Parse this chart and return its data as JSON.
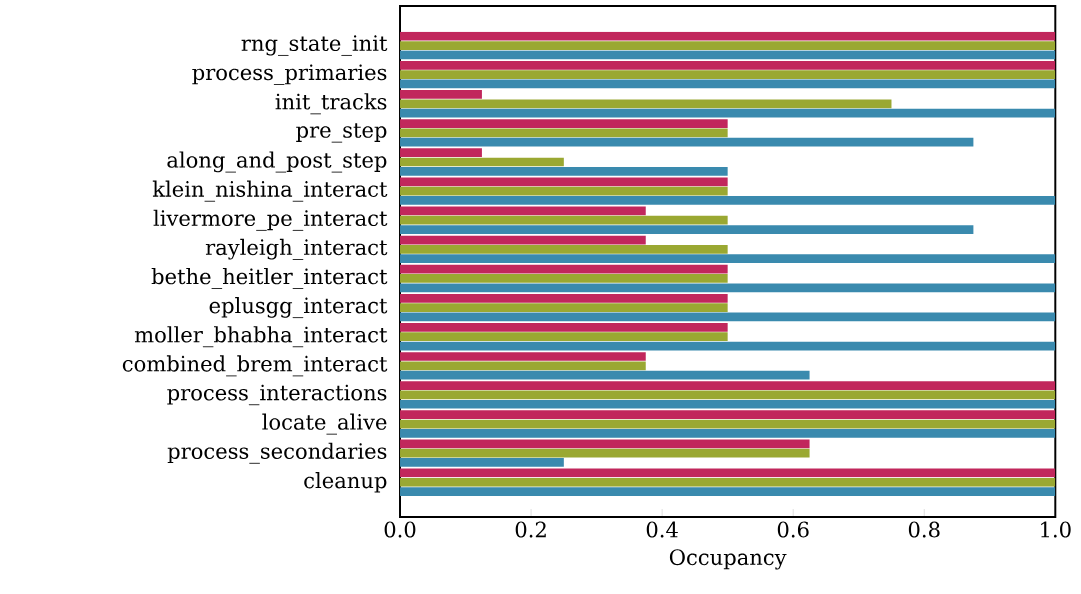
{
  "chart_data": {
    "type": "bar",
    "orientation": "horizontal",
    "xlabel": "Occupancy",
    "categories": [
      "rng_state_init",
      "process_primaries",
      "init_tracks",
      "pre_step",
      "along_and_post_step",
      "klein_nishina_interact",
      "livermore_pe_interact",
      "rayleigh_interact",
      "bethe_heitler_interact",
      "eplusgg_interact",
      "moller_bhabha_interact",
      "combined_brem_interact",
      "process_interactions",
      "locate_alive",
      "process_secondaries",
      "cleanup"
    ],
    "series": [
      {
        "color": "#c1275c",
        "values": [
          1,
          1,
          0.125,
          0.5,
          0.125,
          0.5,
          0.375,
          0.375,
          0.5,
          0.5,
          0.5,
          0.375,
          1,
          1,
          0.625,
          1
        ]
      },
      {
        "color": "#9aa832",
        "values": [
          1,
          1,
          0.75,
          0.5,
          0.25,
          0.5,
          0.5,
          0.5,
          0.5,
          0.5,
          0.5,
          0.375,
          1,
          1,
          0.625,
          1
        ]
      },
      {
        "color": "#3a8aae",
        "values": [
          1,
          1,
          1,
          0.875,
          0.5,
          1,
          0.875,
          1,
          1,
          1,
          1,
          0.625,
          1,
          1,
          0.25,
          1
        ]
      }
    ],
    "xlim": [
      0,
      1
    ],
    "xticks": [
      {
        "value": 0,
        "label": "0.0"
      },
      {
        "value": 0.2,
        "label": "0.2"
      },
      {
        "value": 0.4,
        "label": "0.4"
      },
      {
        "value": 0.6,
        "label": "0.6"
      },
      {
        "value": 0.8,
        "label": "0.8"
      },
      {
        "value": 1,
        "label": "1.0"
      }
    ],
    "grid": false
  }
}
